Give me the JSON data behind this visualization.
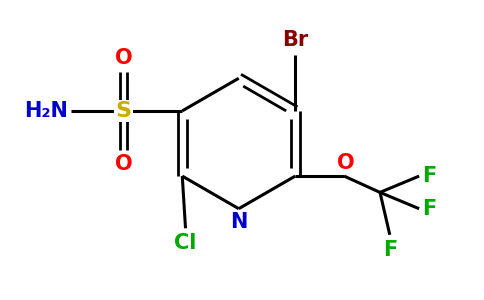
{
  "background_color": "#ffffff",
  "atom_colors": {
    "C": "#000000",
    "N": "#0000cc",
    "O": "#ff0000",
    "S": "#ccaa00",
    "Br": "#8b0000",
    "Cl": "#00aa00",
    "F": "#00aa00",
    "H": "#0000cc"
  },
  "figsize": [
    4.84,
    3.0
  ],
  "dpi": 100
}
